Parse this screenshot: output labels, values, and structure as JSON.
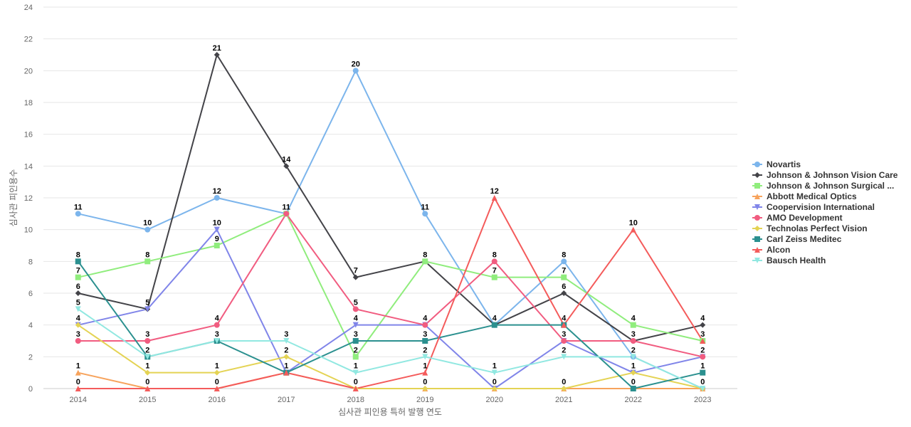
{
  "chart_data": {
    "type": "line",
    "title": "",
    "xlabel": "심사관 피인용 특허 발행 연도",
    "ylabel": "심사관 피인용수",
    "categories": [
      "2014",
      "2015",
      "2016",
      "2017",
      "2018",
      "2019",
      "2020",
      "2021",
      "2022",
      "2023"
    ],
    "ylim": [
      0,
      24
    ],
    "yticks": [
      0,
      2,
      4,
      6,
      8,
      10,
      12,
      14,
      16,
      18,
      20,
      22,
      24
    ],
    "grid": true,
    "legend_position": "right",
    "series": [
      {
        "name": "Novartis",
        "color": "#7cb5ec",
        "marker": "circle",
        "values": [
          11,
          10,
          12,
          11,
          20,
          11,
          4,
          8,
          2,
          0
        ]
      },
      {
        "name": "Johnson & Johnson Vision Care",
        "color": "#434348",
        "marker": "diamond",
        "values": [
          6,
          5,
          21,
          14,
          7,
          8,
          4,
          6,
          3,
          4
        ]
      },
      {
        "name": "Johnson & Johnson Surgical ...",
        "color": "#90ed7d",
        "marker": "square",
        "values": [
          7,
          8,
          9,
          11,
          2,
          8,
          7,
          7,
          4,
          3
        ]
      },
      {
        "name": "Abbott Medical Optics",
        "color": "#f7a35c",
        "marker": "triangle",
        "values": [
          1,
          0,
          0,
          1,
          0,
          0,
          0,
          0,
          0,
          0
        ]
      },
      {
        "name": "Coopervision International",
        "color": "#8085e9",
        "marker": "triangle-down",
        "values": [
          4,
          5,
          10,
          1,
          4,
          4,
          0,
          3,
          1,
          2
        ]
      },
      {
        "name": "AMO Development",
        "color": "#f15c80",
        "marker": "circle",
        "values": [
          3,
          3,
          4,
          11,
          5,
          4,
          8,
          3,
          3,
          2
        ]
      },
      {
        "name": "Technolas Perfect Vision",
        "color": "#e4d354",
        "marker": "diamond",
        "values": [
          4,
          1,
          1,
          2,
          0,
          0,
          0,
          0,
          1,
          0
        ]
      },
      {
        "name": "Carl Zeiss Meditec",
        "color": "#2b908f",
        "marker": "square",
        "values": [
          8,
          2,
          3,
          1,
          3,
          3,
          4,
          4,
          0,
          1
        ]
      },
      {
        "name": "Alcon",
        "color": "#f45b5b",
        "marker": "triangle",
        "values": [
          0,
          0,
          0,
          1,
          0,
          1,
          12,
          4,
          10,
          3
        ]
      },
      {
        "name": "Bausch Health",
        "color": "#91e8e1",
        "marker": "triangle-down",
        "values": [
          5,
          2,
          3,
          3,
          1,
          2,
          1,
          2,
          2,
          0
        ]
      }
    ]
  }
}
